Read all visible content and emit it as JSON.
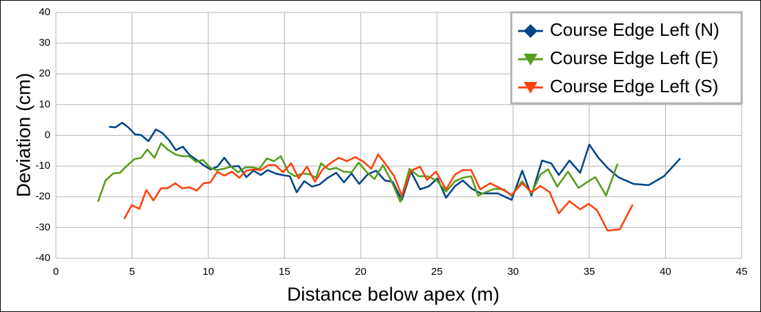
{
  "chart_data": {
    "type": "line",
    "xlabel": "Distance below apex (m)",
    "ylabel": "Deviation (cm)",
    "xlim": [
      0,
      45
    ],
    "xticks": [
      0,
      5,
      10,
      15,
      20,
      25,
      30,
      35,
      40,
      45
    ],
    "ylim": [
      -40,
      40
    ],
    "yticks": [
      -40,
      -30,
      -20,
      -10,
      0,
      10,
      20,
      30,
      40
    ],
    "grid": true,
    "legend": "upper right",
    "series": [
      {
        "name": "Course Edge Left (N)",
        "color": "#004586",
        "marker": "diamond",
        "x": [
          3.49,
          3.9,
          4.35,
          4.75,
          5.2,
          5.6,
          6.07,
          6.56,
          6.97,
          7.42,
          7.87,
          8.33,
          8.78,
          9.24,
          9.69,
          10.14,
          10.6,
          11.05,
          11.5,
          12,
          12.5,
          12.95,
          13.45,
          13.9,
          14.4,
          14.85,
          15.35,
          15.8,
          16.3,
          16.8,
          17.3,
          17.84,
          18.4,
          18.9,
          19.4,
          19.9,
          20.46,
          21,
          21.6,
          22.1,
          22.7,
          23.3,
          23.9,
          24.5,
          25.03,
          25.6,
          26.2,
          26.7,
          27.3,
          27.9,
          28.5,
          29,
          29.9,
          30.6,
          31.2,
          31.9,
          32.5,
          33,
          33.7,
          34.4,
          35,
          35.6,
          36.2,
          36.9,
          37.9,
          38.9,
          39.9,
          40.97
        ],
        "values": [
          2.8,
          2.6,
          4.1,
          2.6,
          0.3,
          0.1,
          -1.9,
          1.9,
          0.8,
          -1.5,
          -4.8,
          -3.7,
          -6.4,
          -8,
          -9.7,
          -11.1,
          -10.2,
          -7.3,
          -10.2,
          -10,
          -13.6,
          -11.5,
          -12.9,
          -11.3,
          -12.4,
          -12.9,
          -13.3,
          -18.5,
          -14.9,
          -16.7,
          -16,
          -13.8,
          -12.2,
          -15.3,
          -12.4,
          -15.8,
          -12.7,
          -11.5,
          -14.7,
          -15.1,
          -21,
          -11.8,
          -17.6,
          -16.5,
          -14,
          -20.3,
          -16.5,
          -14.7,
          -17.4,
          -18.9,
          -18.9,
          -18.9,
          -21,
          -11.5,
          -19.6,
          -8.2,
          -9.1,
          -12.9,
          -8.2,
          -12.2,
          -3,
          -7.3,
          -10.6,
          -13.6,
          -15.8,
          -16.2,
          -13.3,
          -7.5
        ]
      },
      {
        "name": "Course Edge Left (E)",
        "color": "#579d1c",
        "marker": "triangle-down",
        "x": [
          2.76,
          3.26,
          3.76,
          4.2,
          4.7,
          5.16,
          5.6,
          6,
          6.47,
          6.9,
          7.33,
          7.83,
          8.28,
          8.74,
          9.19,
          9.64,
          10.14,
          10.55,
          11,
          11.5,
          11.95,
          12.45,
          12.9,
          13.35,
          13.85,
          14.3,
          14.76,
          15.26,
          15.7,
          16.2,
          16.66,
          17.07,
          17.4,
          17.9,
          18.4,
          18.88,
          19.4,
          19.87,
          20.37,
          20.9,
          21.46,
          22,
          22.6,
          23.2,
          23.8,
          24.4,
          25,
          25.6,
          26.2,
          26.7,
          27.25,
          27.7,
          28.3,
          28.8,
          29.4,
          29.9,
          30.6,
          31.2,
          31.8,
          32.3,
          32.9,
          33.6,
          34.3,
          34.9,
          35.4,
          36.1,
          36.85
        ],
        "values": [
          -21.6,
          -14.7,
          -12.4,
          -12.2,
          -9.7,
          -7.7,
          -7.3,
          -4.6,
          -7.3,
          -2.6,
          -4.6,
          -6.2,
          -6.8,
          -6.8,
          -8.6,
          -8,
          -10.6,
          -11.3,
          -10.9,
          -10.2,
          -12,
          -10.4,
          -10.4,
          -10.9,
          -7.5,
          -8.4,
          -6.8,
          -12,
          -13.3,
          -12.4,
          -12.7,
          -13.8,
          -9.1,
          -11.1,
          -10.6,
          -11.8,
          -12,
          -8.9,
          -11.8,
          -14.2,
          -9.7,
          -14.7,
          -21.6,
          -10.9,
          -13.3,
          -13.3,
          -14.7,
          -18.3,
          -14.9,
          -13.8,
          -13.3,
          -19.6,
          -18.3,
          -17.4,
          -17.6,
          -19.6,
          -14.9,
          -18.9,
          -12.7,
          -11.1,
          -16.7,
          -11.8,
          -17.1,
          -15.1,
          -13.6,
          -19.6,
          -9.3
        ]
      },
      {
        "name": "Course Edge Left (S)",
        "color": "#ff420e",
        "marker": "triangle-down",
        "x": [
          4.48,
          4.98,
          5.48,
          5.93,
          6.4,
          6.9,
          7.33,
          7.83,
          8.28,
          8.78,
          9.24,
          9.69,
          10.14,
          10.6,
          11.05,
          11.55,
          12.04,
          12.5,
          13,
          13.45,
          13.94,
          14.4,
          14.9,
          15.44,
          15.93,
          16.48,
          17,
          17.5,
          18.06,
          18.56,
          19.1,
          19.65,
          20.2,
          20.7,
          21.14,
          21.6,
          22.2,
          22.7,
          23.3,
          23.9,
          24.35,
          24.94,
          25.6,
          26.2,
          26.7,
          27.25,
          27.84,
          28.5,
          29.15,
          29.9,
          30.6,
          31.2,
          31.8,
          32.4,
          33,
          33.7,
          34.4,
          34.95,
          35.5,
          36.2,
          37,
          37.85
        ],
        "values": [
          -27.2,
          -22.7,
          -23.9,
          -17.8,
          -21.2,
          -17.2,
          -17.2,
          -15.6,
          -17.2,
          -16.9,
          -18,
          -15.6,
          -15.3,
          -11.8,
          -13.1,
          -11.8,
          -13.8,
          -11.5,
          -11.1,
          -11.3,
          -9.7,
          -9.7,
          -12,
          -9.1,
          -14,
          -10.2,
          -15.1,
          -11.1,
          -8.9,
          -7.3,
          -8.4,
          -7.1,
          -8.6,
          -10.9,
          -6.2,
          -9.1,
          -13.3,
          -19.6,
          -11.5,
          -10.2,
          -14.5,
          -11.8,
          -17.6,
          -12.7,
          -11.3,
          -11.3,
          -17.6,
          -15.6,
          -17.2,
          -19.4,
          -15.6,
          -18.5,
          -16.5,
          -18.5,
          -25.4,
          -21.4,
          -24.1,
          -22.3,
          -24.3,
          -31,
          -30.6,
          -22.5
        ]
      }
    ]
  }
}
